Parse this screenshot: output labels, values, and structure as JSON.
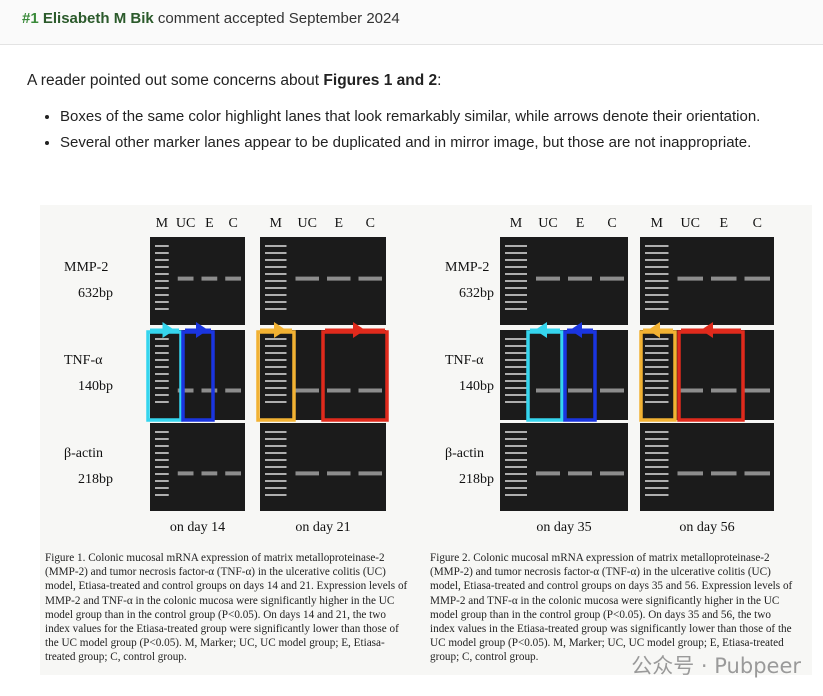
{
  "comment": {
    "number": "#1",
    "author": "Elisabeth M Bik",
    "status": "comment accepted September 2024"
  },
  "intro": {
    "prefix": "A reader pointed out some concerns about ",
    "bold": "Figures 1 and 2",
    "suffix": ":"
  },
  "bullets": [
    "Boxes of the same color highlight lanes that look remarkably similar, while arrows denote their orientation.",
    "Several other marker lanes appear to be duplicated and in mirror image, but those are not inappropriate."
  ],
  "figure": {
    "lane_labels": [
      "M",
      "UC",
      "E",
      "C"
    ],
    "rows": [
      {
        "name": "MMP-2",
        "size": "632bp"
      },
      {
        "name": "TNF-α",
        "size": "140bp"
      },
      {
        "name": "β-actin",
        "size": "218bp"
      }
    ],
    "day_labels": [
      "on day 14",
      "on day 21",
      "on day 35",
      "on day 56"
    ],
    "box_colors": {
      "cyan": "#35d5ee",
      "blue": "#1a35e0",
      "orange": "#f2b233",
      "red": "#e02a1c"
    },
    "caption1": "Figure 1. Colonic mucosal mRNA expression of matrix metalloproteinase-2 (MMP-2) and tumor necrosis factor-α (TNF-α) in the ulcerative colitis (UC) model, Etiasa-treated and control groups on days 14 and 21. Expression levels of MMP-2 and TNF-α in the colonic mucosa were significantly higher in the UC model group than in the control group (P<0.05). On days 14 and 21, the two index values for the Etiasa-treated group were significantly lower than those of the UC model group (P<0.05). M, Marker; UC, UC model group; E, Etiasa-treated group; C, control group.",
    "caption2": "Figure 2. Colonic mucosal mRNA expression of matrix metalloproteinase-2 (MMP-2) and tumor necrosis factor-α (TNF-α) in the ulcerative colitis (UC) model, Etiasa-treated and control groups on days 35 and 56. Expression levels of MMP-2 and TNF-α in the colonic mucosa were significantly higher in the UC model group than in the control group (P<0.05). On days 35 and 56, the two index values in the Etiasa-treated group was significantly lower than those of the UC model group (P<0.05). M, Marker; UC, UC model group; E, Etiasa-treated group; C, control group."
  },
  "watermark": "公众号 · Pubpeer"
}
